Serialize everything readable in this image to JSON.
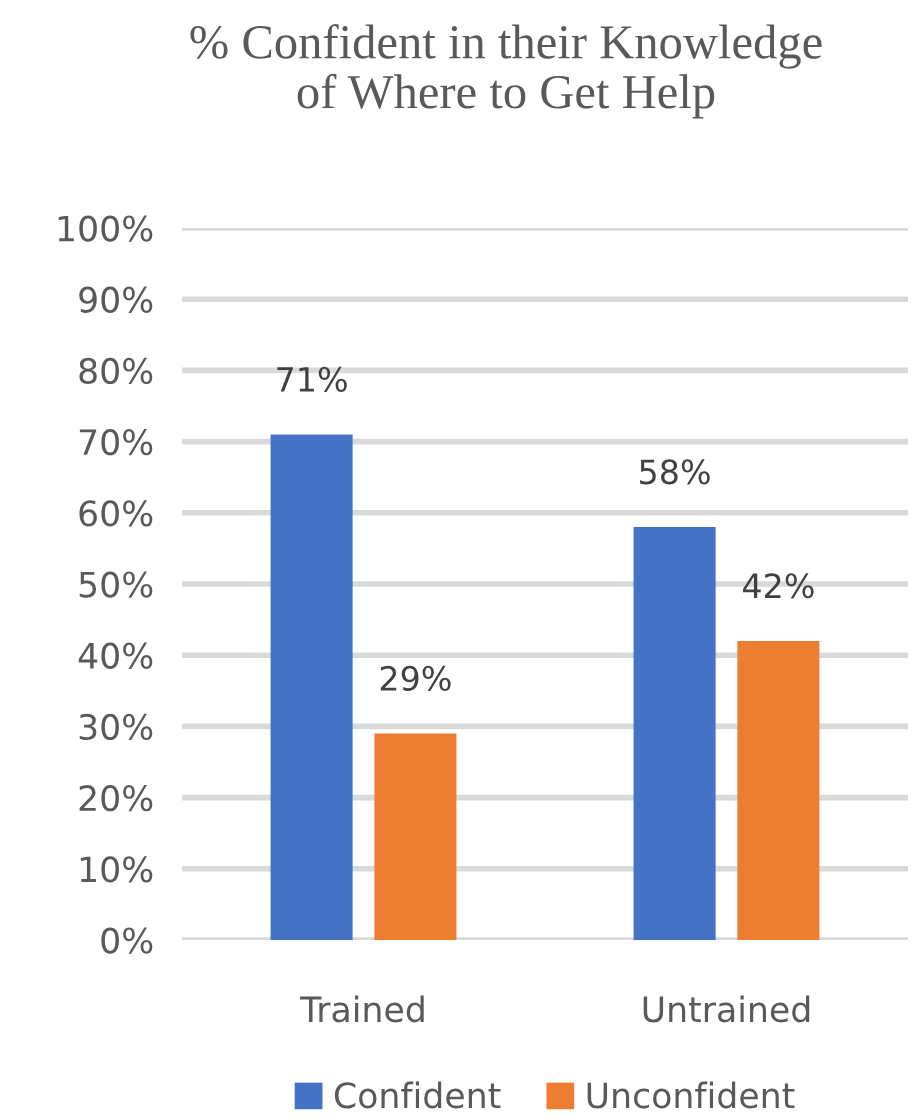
{
  "chart_data": {
    "type": "bar",
    "title": "% Confident in their Knowledge\nof Where to Get Help",
    "categories": [
      "Trained",
      "Untrained"
    ],
    "series": [
      {
        "name": "Confident",
        "color": "#4472c4",
        "values": [
          71,
          58
        ],
        "value_labels": [
          "71%",
          "58%"
        ]
      },
      {
        "name": "Unconfident",
        "color": "#ed7d31",
        "values": [
          29,
          42
        ],
        "value_labels": [
          "29%",
          "42%"
        ]
      }
    ],
    "ylim": [
      0,
      100
    ],
    "yticks": [
      {
        "value": 0,
        "label": "0%"
      },
      {
        "value": 10,
        "label": "10%"
      },
      {
        "value": 20,
        "label": "20%"
      },
      {
        "value": 30,
        "label": "30%"
      },
      {
        "value": 40,
        "label": "40%"
      },
      {
        "value": 50,
        "label": "50%"
      },
      {
        "value": 60,
        "label": "60%"
      },
      {
        "value": 70,
        "label": "70%"
      },
      {
        "value": 80,
        "label": "80%"
      },
      {
        "value": 90,
        "label": "90%"
      },
      {
        "value": 100,
        "label": "100%"
      }
    ],
    "grid": "y",
    "legend": "bottom"
  }
}
